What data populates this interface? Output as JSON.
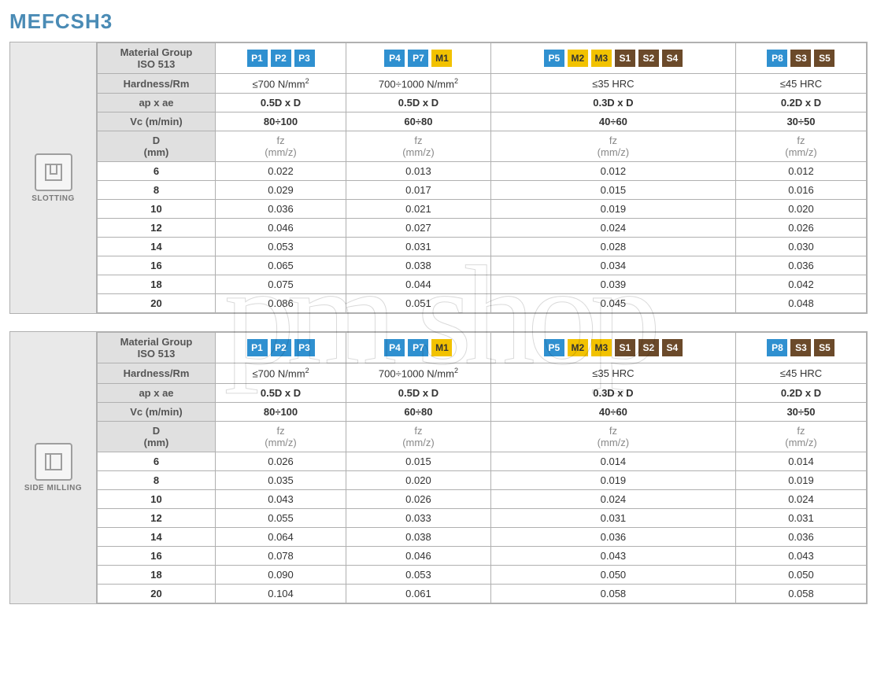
{
  "page_title": "MEFCSH3",
  "title_color": "#4a8bb5",
  "watermark_text": "pm shop",
  "badge_colors": {
    "P": "#2f90d0",
    "M": "#f2c200",
    "S": "#6b4a2a"
  },
  "material_groups": [
    {
      "badges": [
        {
          "t": "P1",
          "c": "P"
        },
        {
          "t": "P2",
          "c": "P"
        },
        {
          "t": "P3",
          "c": "P"
        }
      ]
    },
    {
      "badges": [
        {
          "t": "P4",
          "c": "P"
        },
        {
          "t": "P7",
          "c": "P"
        },
        {
          "t": "M1",
          "c": "M"
        }
      ]
    },
    {
      "badges": [
        {
          "t": "P5",
          "c": "P"
        },
        {
          "t": "M2",
          "c": "M"
        },
        {
          "t": "M3",
          "c": "M"
        },
        {
          "t": "S1",
          "c": "S"
        },
        {
          "t": "S2",
          "c": "S"
        },
        {
          "t": "S4",
          "c": "S"
        }
      ]
    },
    {
      "badges": [
        {
          "t": "P8",
          "c": "P"
        },
        {
          "t": "S3",
          "c": "S"
        },
        {
          "t": "S5",
          "c": "S"
        }
      ]
    }
  ],
  "header_labels": {
    "material_group": "Material Group\nISO 513",
    "hardness": "Hardness/Rm",
    "apae": "ap x ae",
    "vc": "Vc (m/min)",
    "d": "D\n(mm)",
    "fz": "fz\n(mm/z)"
  },
  "columns_meta": {
    "hardness": [
      "≤700 N/mm²",
      "700÷1000 N/mm²",
      "≤35 HRC",
      "≤45 HRC"
    ],
    "apae": [
      "0.5D x D",
      "0.5D x D",
      "0.3D x D",
      "0.2D x D"
    ],
    "vc": [
      "80÷100",
      "60÷80",
      "40÷60",
      "30÷50"
    ]
  },
  "diameters": [
    "6",
    "8",
    "10",
    "12",
    "14",
    "16",
    "18",
    "20"
  ],
  "tables": [
    {
      "side_label": "SLOTTING",
      "icon": "slotting",
      "rows": [
        [
          "0.022",
          "0.013",
          "0.012",
          "0.012"
        ],
        [
          "0.029",
          "0.017",
          "0.015",
          "0.016"
        ],
        [
          "0.036",
          "0.021",
          "0.019",
          "0.020"
        ],
        [
          "0.046",
          "0.027",
          "0.024",
          "0.026"
        ],
        [
          "0.053",
          "0.031",
          "0.028",
          "0.030"
        ],
        [
          "0.065",
          "0.038",
          "0.034",
          "0.036"
        ],
        [
          "0.075",
          "0.044",
          "0.039",
          "0.042"
        ],
        [
          "0.086",
          "0.051",
          "0.045",
          "0.048"
        ]
      ]
    },
    {
      "side_label": "SIDE MILLING",
      "icon": "sidemilling",
      "rows": [
        [
          "0.026",
          "0.015",
          "0.014",
          "0.014"
        ],
        [
          "0.035",
          "0.020",
          "0.019",
          "0.019"
        ],
        [
          "0.043",
          "0.026",
          "0.024",
          "0.024"
        ],
        [
          "0.055",
          "0.033",
          "0.031",
          "0.031"
        ],
        [
          "0.064",
          "0.038",
          "0.036",
          "0.036"
        ],
        [
          "0.078",
          "0.046",
          "0.043",
          "0.043"
        ],
        [
          "0.090",
          "0.053",
          "0.050",
          "0.050"
        ],
        [
          "0.104",
          "0.061",
          "0.058",
          "0.058"
        ]
      ]
    }
  ]
}
